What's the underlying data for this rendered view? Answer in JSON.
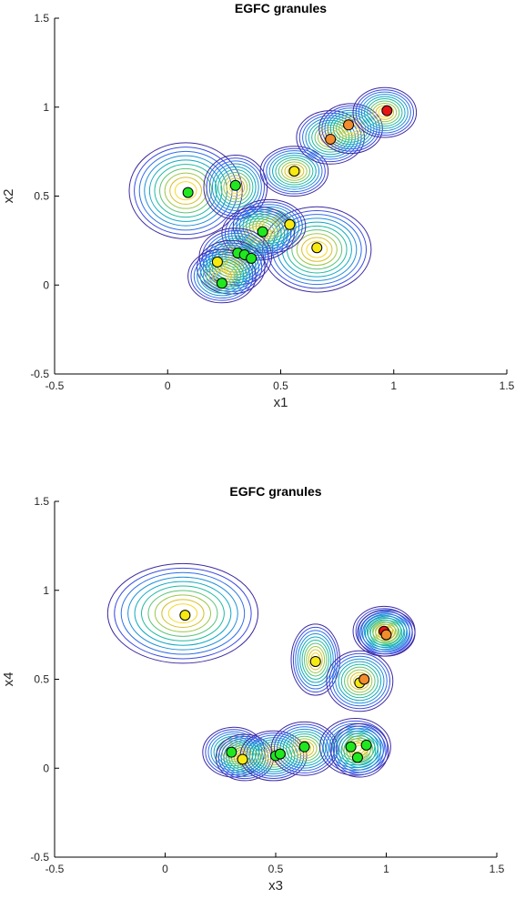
{
  "contour_colors": [
    "#3e2aa0",
    "#3a4be0",
    "#2f6fe8",
    "#1f8fd8",
    "#10a8c2",
    "#1ebaa0",
    "#5cc378",
    "#9cc84a",
    "#d6c02e",
    "#f6d828"
  ],
  "cluster_colors": {
    "green": "#1fe81f",
    "yellow": "#f6ea10",
    "orange": "#f28c2c",
    "red": "#e81414"
  },
  "chart_data": [
    {
      "type": "scatter",
      "title": "EGFC granules",
      "xlabel": "x1",
      "ylabel": "x2",
      "xlim": [
        -0.5,
        1.5
      ],
      "ylim": [
        -0.5,
        1.5
      ],
      "xticks": [
        -0.5,
        0,
        0.5,
        1,
        1.5
      ],
      "yticks": [
        -0.5,
        0,
        0.5,
        1,
        1.5
      ],
      "xtick_labels": [
        "-0.5",
        "0",
        "0.5",
        "1",
        "1.5"
      ],
      "ytick_labels": [
        "-0.5",
        "0",
        "0.5",
        "1",
        "1.5"
      ],
      "grid": false,
      "granules": [
        {
          "cx": 0.08,
          "cy": 0.53,
          "sx": 0.25,
          "sy": 0.27
        },
        {
          "cx": 0.3,
          "cy": 0.55,
          "sx": 0.14,
          "sy": 0.18
        },
        {
          "cx": 0.56,
          "cy": 0.64,
          "sx": 0.15,
          "sy": 0.14
        },
        {
          "cx": 0.72,
          "cy": 0.83,
          "sx": 0.15,
          "sy": 0.15
        },
        {
          "cx": 0.81,
          "cy": 0.88,
          "sx": 0.14,
          "sy": 0.14
        },
        {
          "cx": 0.96,
          "cy": 0.97,
          "sx": 0.14,
          "sy": 0.14
        },
        {
          "cx": 0.66,
          "cy": 0.2,
          "sx": 0.24,
          "sy": 0.24
        },
        {
          "cx": 0.45,
          "cy": 0.33,
          "sx": 0.16,
          "sy": 0.15
        },
        {
          "cx": 0.4,
          "cy": 0.29,
          "sx": 0.16,
          "sy": 0.15
        },
        {
          "cx": 0.3,
          "cy": 0.16,
          "sx": 0.16,
          "sy": 0.16
        },
        {
          "cx": 0.28,
          "cy": 0.1,
          "sx": 0.15,
          "sy": 0.15
        },
        {
          "cx": 0.24,
          "cy": 0.05,
          "sx": 0.15,
          "sy": 0.15
        }
      ],
      "points": [
        {
          "x": 0.09,
          "y": 0.52,
          "color": "green"
        },
        {
          "x": 0.3,
          "y": 0.56,
          "color": "green"
        },
        {
          "x": 0.56,
          "y": 0.64,
          "color": "yellow"
        },
        {
          "x": 0.72,
          "y": 0.82,
          "color": "orange"
        },
        {
          "x": 0.8,
          "y": 0.9,
          "color": "orange"
        },
        {
          "x": 0.97,
          "y": 0.98,
          "color": "red"
        },
        {
          "x": 0.42,
          "y": 0.3,
          "color": "green"
        },
        {
          "x": 0.54,
          "y": 0.34,
          "color": "yellow"
        },
        {
          "x": 0.66,
          "y": 0.21,
          "color": "yellow"
        },
        {
          "x": 0.31,
          "y": 0.18,
          "color": "green"
        },
        {
          "x": 0.34,
          "y": 0.17,
          "color": "green"
        },
        {
          "x": 0.37,
          "y": 0.15,
          "color": "green"
        },
        {
          "x": 0.22,
          "y": 0.13,
          "color": "yellow"
        },
        {
          "x": 0.24,
          "y": 0.01,
          "color": "green"
        }
      ]
    },
    {
      "type": "scatter",
      "title": "EGFC granules",
      "xlabel": "x3",
      "ylabel": "x4",
      "xlim": [
        -0.5,
        1.5
      ],
      "ylim": [
        -0.5,
        1.5
      ],
      "xticks": [
        -0.5,
        0,
        0.5,
        1,
        1.5
      ],
      "yticks": [
        -0.5,
        0,
        0.5,
        1,
        1.5
      ],
      "xtick_labels": [
        "-0.5",
        "0",
        "0.5",
        "1",
        "1.5"
      ],
      "ytick_labels": [
        "-0.5",
        "0",
        "0.5",
        "1",
        "1.5"
      ],
      "grid": false,
      "granules": [
        {
          "cx": 0.08,
          "cy": 0.87,
          "sx": 0.34,
          "sy": 0.28
        },
        {
          "cx": 0.68,
          "cy": 0.61,
          "sx": 0.11,
          "sy": 0.2
        },
        {
          "cx": 0.88,
          "cy": 0.49,
          "sx": 0.15,
          "sy": 0.17
        },
        {
          "cx": 0.99,
          "cy": 0.77,
          "sx": 0.14,
          "sy": 0.14
        },
        {
          "cx": 1.0,
          "cy": 0.76,
          "sx": 0.13,
          "sy": 0.13
        },
        {
          "cx": 0.31,
          "cy": 0.09,
          "sx": 0.14,
          "sy": 0.14
        },
        {
          "cx": 0.36,
          "cy": 0.06,
          "sx": 0.13,
          "sy": 0.13
        },
        {
          "cx": 0.49,
          "cy": 0.07,
          "sx": 0.15,
          "sy": 0.14
        },
        {
          "cx": 0.63,
          "cy": 0.11,
          "sx": 0.15,
          "sy": 0.15
        },
        {
          "cx": 0.86,
          "cy": 0.12,
          "sx": 0.16,
          "sy": 0.16
        },
        {
          "cx": 0.88,
          "cy": 0.1,
          "sx": 0.13,
          "sy": 0.15
        }
      ],
      "points": [
        {
          "x": 0.09,
          "y": 0.86,
          "color": "yellow"
        },
        {
          "x": 0.68,
          "y": 0.6,
          "color": "yellow"
        },
        {
          "x": 0.88,
          "y": 0.48,
          "color": "yellow"
        },
        {
          "x": 0.9,
          "y": 0.5,
          "color": "orange"
        },
        {
          "x": 0.99,
          "y": 0.77,
          "color": "red"
        },
        {
          "x": 1.0,
          "y": 0.75,
          "color": "orange"
        },
        {
          "x": 0.3,
          "y": 0.09,
          "color": "green"
        },
        {
          "x": 0.35,
          "y": 0.05,
          "color": "yellow"
        },
        {
          "x": 0.5,
          "y": 0.07,
          "color": "green"
        },
        {
          "x": 0.52,
          "y": 0.08,
          "color": "green"
        },
        {
          "x": 0.63,
          "y": 0.12,
          "color": "green"
        },
        {
          "x": 0.84,
          "y": 0.12,
          "color": "green"
        },
        {
          "x": 0.91,
          "y": 0.13,
          "color": "green"
        },
        {
          "x": 0.87,
          "y": 0.06,
          "color": "green"
        }
      ]
    }
  ]
}
